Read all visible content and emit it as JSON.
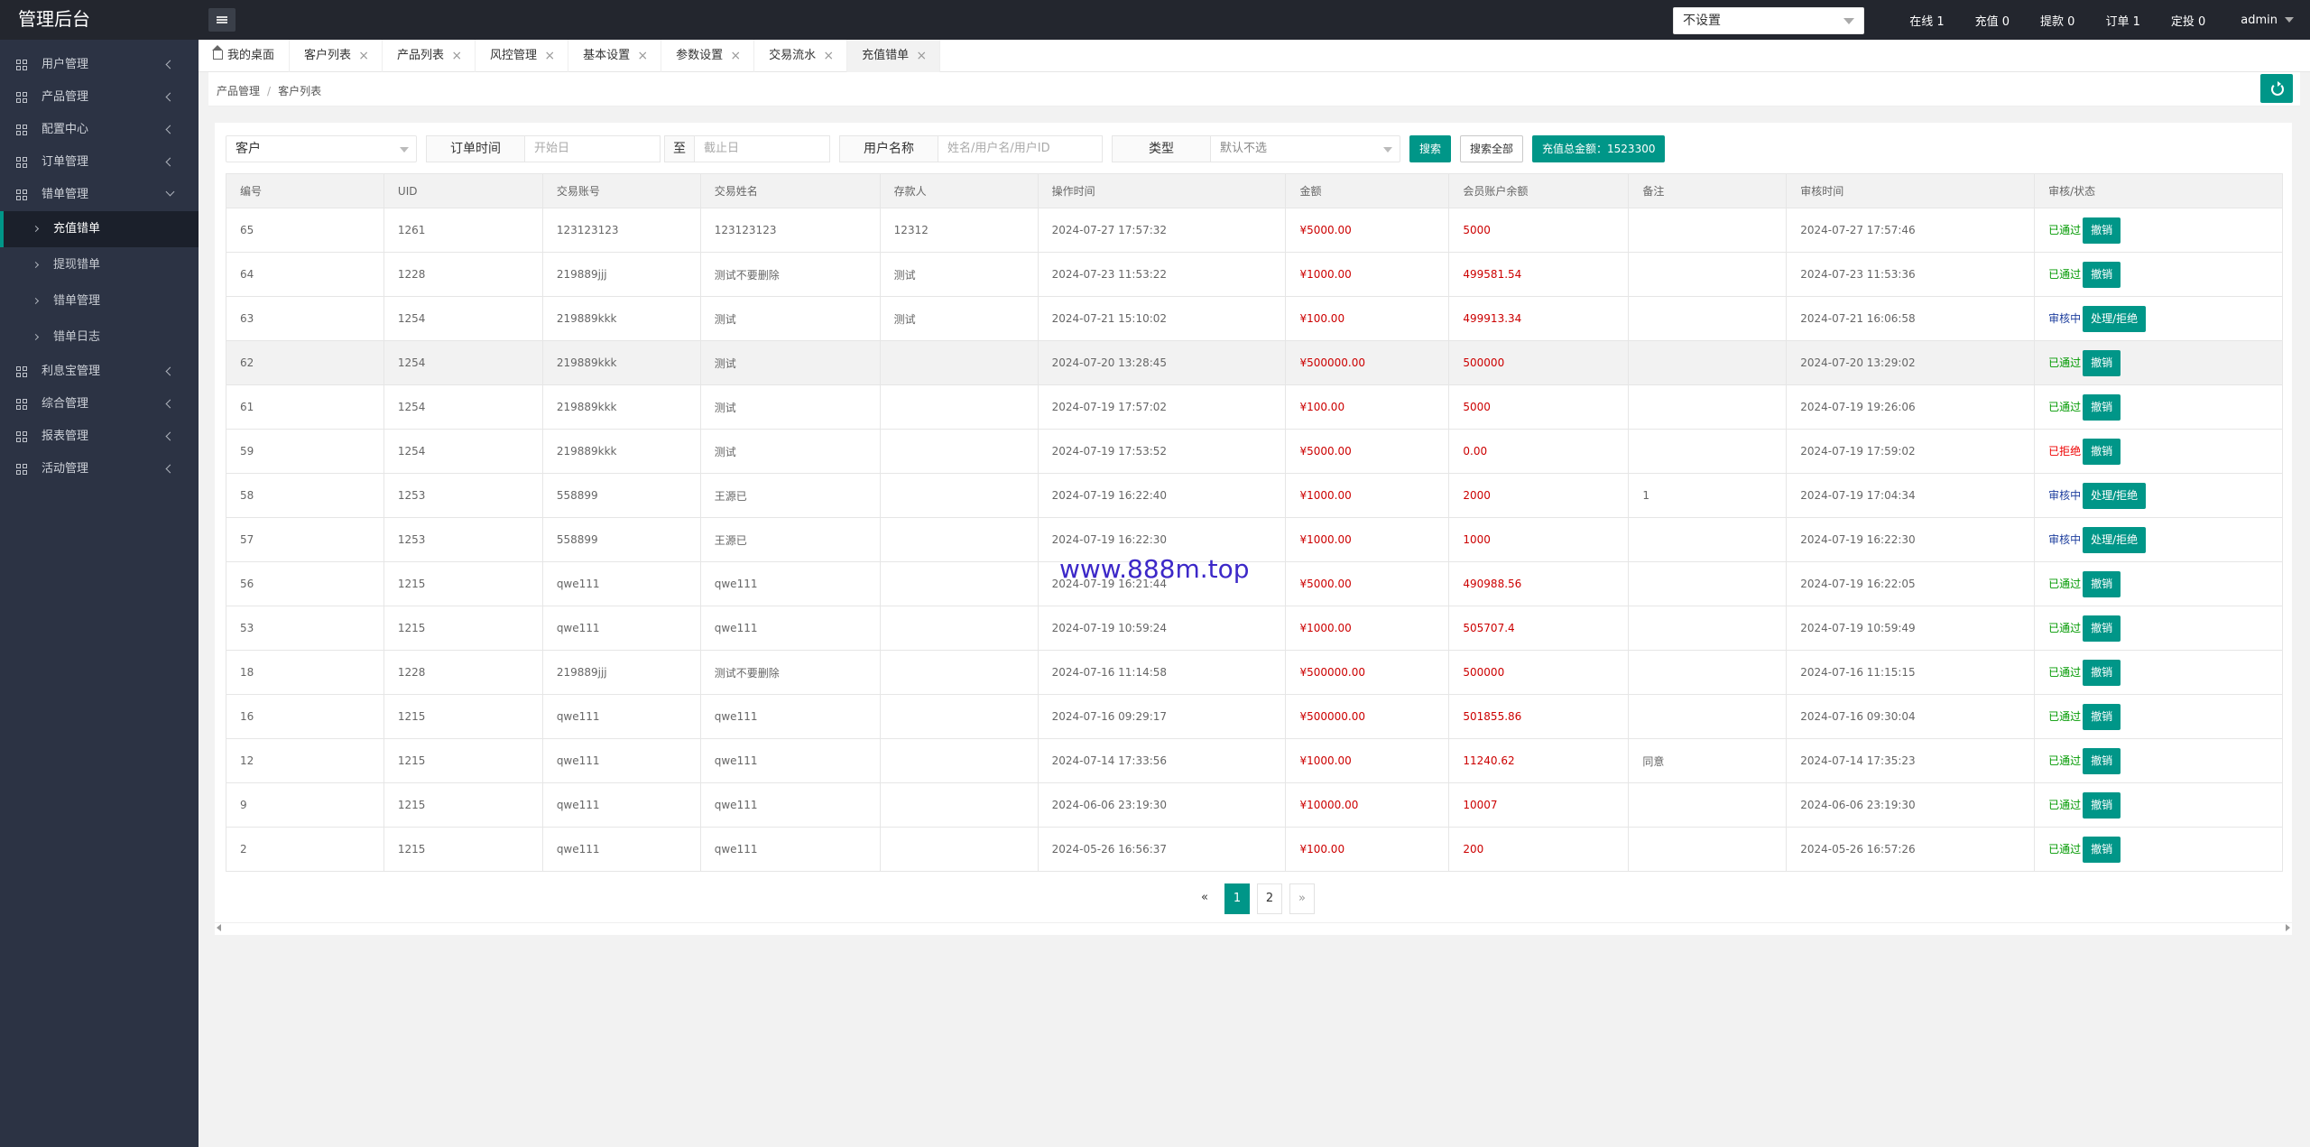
{
  "header": {
    "logo": "管理后台",
    "select_value": "不设置",
    "stats": [
      "在线 1",
      "充值 0",
      "提款 0",
      "订单 1",
      "定投 0"
    ],
    "user": "admin"
  },
  "sidebar": {
    "items": [
      {
        "label": "用户管理"
      },
      {
        "label": "产品管理"
      },
      {
        "label": "配置中心"
      },
      {
        "label": "订单管理"
      },
      {
        "label": "错单管理"
      }
    ],
    "sub_items": [
      {
        "label": "充值错单"
      },
      {
        "label": "提现错单"
      },
      {
        "label": "错单管理"
      },
      {
        "label": "错单日志"
      }
    ],
    "items_after": [
      {
        "label": "利息宝管理"
      },
      {
        "label": "综合管理"
      },
      {
        "label": "报表管理"
      },
      {
        "label": "活动管理"
      }
    ]
  },
  "tabs": [
    {
      "label": "我的桌面"
    },
    {
      "label": "客户列表"
    },
    {
      "label": "产品列表"
    },
    {
      "label": "风控管理"
    },
    {
      "label": "基本设置"
    },
    {
      "label": "参数设置"
    },
    {
      "label": "交易流水"
    },
    {
      "label": "充值错单"
    }
  ],
  "breadcrumb": {
    "first": "产品管理",
    "sep": "/",
    "second": "客户列表"
  },
  "filters": {
    "type_select": "客户",
    "order_time_label": "订单时间",
    "start_placeholder": "开始日",
    "to_label": "至",
    "end_placeholder": "截止日",
    "username_label": "用户名称",
    "username_placeholder": "姓名/用户名/用户ID",
    "kind_label": "类型",
    "kind_select": "默认不选",
    "search_btn": "搜索",
    "search_all_btn": "搜索全部",
    "total_btn": "充值总金额：1523300"
  },
  "table": {
    "headers": [
      "编号",
      "UID",
      "交易账号",
      "交易姓名",
      "存款人",
      "操作时间",
      "金额",
      "会员账户余额",
      "备注",
      "审核时间",
      "审核/状态"
    ],
    "rows": [
      {
        "id": "65",
        "uid": "1261",
        "account": "123123123",
        "name": "123123123",
        "depositor": "12312",
        "op_time": "2024-07-27 17:57:32",
        "amount": "¥5000.00",
        "balance": "5000",
        "note": "",
        "audit_time": "2024-07-27 17:57:46",
        "status": "已通过",
        "status_type": "ok",
        "action": "撤销"
      },
      {
        "id": "64",
        "uid": "1228",
        "account": "219889jjj",
        "name": "测试不要删除",
        "depositor": "测试",
        "op_time": "2024-07-23 11:53:22",
        "amount": "¥1000.00",
        "balance": "499581.54",
        "note": "",
        "audit_time": "2024-07-23 11:53:36",
        "status": "已通过",
        "status_type": "ok",
        "action": "撤销"
      },
      {
        "id": "63",
        "uid": "1254",
        "account": "219889kkk",
        "name": "测试",
        "depositor": "测试",
        "op_time": "2024-07-21 15:10:02",
        "amount": "¥100.00",
        "balance": "499913.34",
        "note": "",
        "audit_time": "2024-07-21 16:06:58",
        "status": "审核中",
        "status_type": "pending",
        "action": "处理/拒绝"
      },
      {
        "id": "62",
        "uid": "1254",
        "account": "219889kkk",
        "name": "测试",
        "depositor": "",
        "op_time": "2024-07-20 13:28:45",
        "amount": "¥500000.00",
        "balance": "500000",
        "note": "",
        "audit_time": "2024-07-20 13:29:02",
        "status": "已通过",
        "status_type": "ok",
        "action": "撤销"
      },
      {
        "id": "61",
        "uid": "1254",
        "account": "219889kkk",
        "name": "测试",
        "depositor": "",
        "op_time": "2024-07-19 17:57:02",
        "amount": "¥100.00",
        "balance": "5000",
        "note": "",
        "audit_time": "2024-07-19 19:26:06",
        "status": "已通过",
        "status_type": "ok",
        "action": "撤销"
      },
      {
        "id": "59",
        "uid": "1254",
        "account": "219889kkk",
        "name": "测试",
        "depositor": "",
        "op_time": "2024-07-19 17:53:52",
        "amount": "¥5000.00",
        "balance": "0.00",
        "note": "",
        "audit_time": "2024-07-19 17:59:02",
        "status": "已拒绝",
        "status_type": "reject",
        "action": "撤销"
      },
      {
        "id": "58",
        "uid": "1253",
        "account": "558899",
        "name": "王源已",
        "depositor": "",
        "op_time": "2024-07-19 16:22:40",
        "amount": "¥1000.00",
        "balance": "2000",
        "note": "1",
        "audit_time": "2024-07-19 17:04:34",
        "status": "审核中",
        "status_type": "pending",
        "action": "处理/拒绝"
      },
      {
        "id": "57",
        "uid": "1253",
        "account": "558899",
        "name": "王源已",
        "depositor": "",
        "op_time": "2024-07-19 16:22:30",
        "amount": "¥1000.00",
        "balance": "1000",
        "note": "",
        "audit_time": "2024-07-19 16:22:30",
        "status": "审核中",
        "status_type": "pending",
        "action": "处理/拒绝"
      },
      {
        "id": "56",
        "uid": "1215",
        "account": "qwe111",
        "name": "qwe111",
        "depositor": "",
        "op_time": "2024-07-19 16:21:44",
        "amount": "¥5000.00",
        "balance": "490988.56",
        "note": "",
        "audit_time": "2024-07-19 16:22:05",
        "status": "已通过",
        "status_type": "ok",
        "action": "撤销"
      },
      {
        "id": "53",
        "uid": "1215",
        "account": "qwe111",
        "name": "qwe111",
        "depositor": "",
        "op_time": "2024-07-19 10:59:24",
        "amount": "¥1000.00",
        "balance": "505707.4",
        "note": "",
        "audit_time": "2024-07-19 10:59:49",
        "status": "已通过",
        "status_type": "ok",
        "action": "撤销"
      },
      {
        "id": "18",
        "uid": "1228",
        "account": "219889jjj",
        "name": "测试不要删除",
        "depositor": "",
        "op_time": "2024-07-16 11:14:58",
        "amount": "¥500000.00",
        "balance": "500000",
        "note": "",
        "audit_time": "2024-07-16 11:15:15",
        "status": "已通过",
        "status_type": "ok",
        "action": "撤销"
      },
      {
        "id": "16",
        "uid": "1215",
        "account": "qwe111",
        "name": "qwe111",
        "depositor": "",
        "op_time": "2024-07-16 09:29:17",
        "amount": "¥500000.00",
        "balance": "501855.86",
        "note": "",
        "audit_time": "2024-07-16 09:30:04",
        "status": "已通过",
        "status_type": "ok",
        "action": "撤销"
      },
      {
        "id": "12",
        "uid": "1215",
        "account": "qwe111",
        "name": "qwe111",
        "depositor": "",
        "op_time": "2024-07-14 17:33:56",
        "amount": "¥1000.00",
        "balance": "11240.62",
        "note": "同意",
        "audit_time": "2024-07-14 17:35:23",
        "status": "已通过",
        "status_type": "ok",
        "action": "撤销"
      },
      {
        "id": "9",
        "uid": "1215",
        "account": "qwe111",
        "name": "qwe111",
        "depositor": "",
        "op_time": "2024-06-06 23:19:30",
        "amount": "¥10000.00",
        "balance": "10007",
        "note": "",
        "audit_time": "2024-06-06 23:19:30",
        "status": "已通过",
        "status_type": "ok",
        "action": "撤销"
      },
      {
        "id": "2",
        "uid": "1215",
        "account": "qwe111",
        "name": "qwe111",
        "depositor": "",
        "op_time": "2024-05-26 16:56:37",
        "amount": "¥100.00",
        "balance": "200",
        "note": "",
        "audit_time": "2024-05-26 16:57:26",
        "status": "已通过",
        "status_type": "ok",
        "action": "撤销"
      }
    ]
  },
  "pagination": {
    "prev": "«",
    "pages": [
      "1",
      "2"
    ],
    "current": "1",
    "next": "»"
  },
  "watermark": "www.888m.top",
  "colors": {
    "accent": "#009688",
    "header_bg": "#23262e",
    "sidebar_bg": "#2c3344",
    "money": "#cc0000",
    "ok": "#009900",
    "pending": "#1e3f9e",
    "reject": "#ee0000"
  }
}
